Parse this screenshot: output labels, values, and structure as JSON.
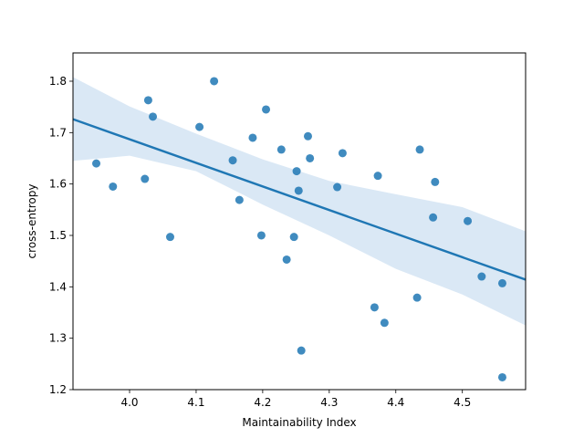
{
  "chart_data": {
    "type": "scatter",
    "title": "",
    "xlabel": "Maintainability Index",
    "ylabel": "cross-entropy",
    "xlim": [
      3.915,
      4.595
    ],
    "ylim": [
      1.2,
      1.855
    ],
    "xticks": [
      4.0,
      4.1,
      4.2,
      4.3,
      4.4,
      4.5
    ],
    "xtick_labels": [
      "4.0",
      "4.1",
      "4.2",
      "4.3",
      "4.4",
      "4.5"
    ],
    "yticks": [
      1.2,
      1.3,
      1.4,
      1.5,
      1.6,
      1.7,
      1.8
    ],
    "ytick_labels": [
      "1.2",
      "1.3",
      "1.4",
      "1.5",
      "1.6",
      "1.7",
      "1.8"
    ],
    "grid": false,
    "legend": "none",
    "colors": {
      "points": "#1f77b4",
      "regression_line": "#1f77b4",
      "confidence_band": "#c6dbef"
    },
    "points": [
      {
        "x": 3.95,
        "y": 1.64
      },
      {
        "x": 3.975,
        "y": 1.595
      },
      {
        "x": 4.023,
        "y": 1.61
      },
      {
        "x": 4.028,
        "y": 1.763
      },
      {
        "x": 4.035,
        "y": 1.731
      },
      {
        "x": 4.061,
        "y": 1.497
      },
      {
        "x": 4.105,
        "y": 1.711
      },
      {
        "x": 4.127,
        "y": 1.8
      },
      {
        "x": 4.155,
        "y": 1.646
      },
      {
        "x": 4.165,
        "y": 1.569
      },
      {
        "x": 4.185,
        "y": 1.69
      },
      {
        "x": 4.198,
        "y": 1.5
      },
      {
        "x": 4.205,
        "y": 1.745
      },
      {
        "x": 4.228,
        "y": 1.667
      },
      {
        "x": 4.236,
        "y": 1.453
      },
      {
        "x": 4.247,
        "y": 1.497
      },
      {
        "x": 4.251,
        "y": 1.625
      },
      {
        "x": 4.254,
        "y": 1.587
      },
      {
        "x": 4.258,
        "y": 1.276
      },
      {
        "x": 4.268,
        "y": 1.693
      },
      {
        "x": 4.271,
        "y": 1.65
      },
      {
        "x": 4.312,
        "y": 1.594
      },
      {
        "x": 4.32,
        "y": 1.66
      },
      {
        "x": 4.368,
        "y": 1.36
      },
      {
        "x": 4.373,
        "y": 1.616
      },
      {
        "x": 4.383,
        "y": 1.33
      },
      {
        "x": 4.432,
        "y": 1.379
      },
      {
        "x": 4.436,
        "y": 1.667
      },
      {
        "x": 4.456,
        "y": 1.535
      },
      {
        "x": 4.459,
        "y": 1.604
      },
      {
        "x": 4.508,
        "y": 1.528
      },
      {
        "x": 4.529,
        "y": 1.42
      },
      {
        "x": 4.56,
        "y": 1.407
      },
      {
        "x": 4.56,
        "y": 1.224
      }
    ],
    "regression": {
      "x": [
        3.915,
        4.595
      ],
      "y": [
        1.726,
        1.414
      ]
    },
    "confidence_band": {
      "x": [
        3.915,
        4.0,
        4.1,
        4.2,
        4.3,
        4.4,
        4.5,
        4.595
      ],
      "upper": [
        1.808,
        1.751,
        1.698,
        1.648,
        1.606,
        1.58,
        1.555,
        1.508
      ],
      "lower": [
        1.645,
        1.655,
        1.625,
        1.56,
        1.5,
        1.435,
        1.385,
        1.325
      ]
    }
  }
}
